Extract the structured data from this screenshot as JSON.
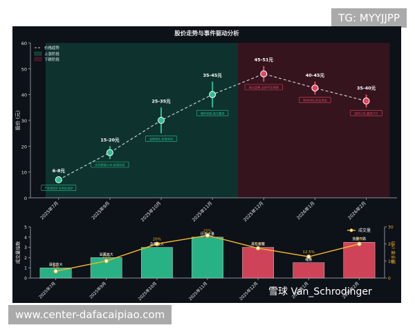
{
  "watermarks": {
    "top": "TG: MYYJJPP",
    "bottom": "www.center-dafacaipiao.com",
    "xueqiu": "雪球 Van_Schrodinger"
  },
  "colors": {
    "bg": "#0d1118",
    "up": "#2bbf8e",
    "down": "#e0485f",
    "volume_line": "#f0b429",
    "uptrend_bg": "#0f3a34",
    "downtrend_bg": "#3d1520",
    "text": "#e8e8e8"
  },
  "chart_data": [
    {
      "type": "line",
      "title": "股价走势与事件驱动分析",
      "ylabel": "股价 (元)",
      "ylim": [
        0,
        60
      ],
      "yticks": [
        0,
        10,
        20,
        30,
        40,
        50,
        60
      ],
      "categories": [
        "2025年7月",
        "2025年9月",
        "2025年10月",
        "2025年11月",
        "2025年12月",
        "2026年1月",
        "2026年2月"
      ],
      "series": [
        {
          "name": "价格趋势",
          "values": [
            7,
            17.5,
            30,
            40,
            48,
            42.5,
            37.5
          ]
        }
      ],
      "ranges": [
        [
          6,
          8
        ],
        [
          15,
          20
        ],
        [
          25,
          35
        ],
        [
          35,
          45
        ],
        [
          45,
          51
        ],
        [
          40,
          45
        ],
        [
          35,
          40
        ]
      ],
      "range_labels": [
        "6-8元",
        "15-20元",
        "25-35元",
        "35-45元",
        "45-51元",
        "40-45元",
        "35-40元"
      ],
      "event_labels": [
        "产能规划扩充利好出炉",
        "实验数据公布,新高阶段",
        "业绩增长,季度利好",
        "强势突破,高位震荡",
        "高位盘整,业绩不及预期",
        "获利回吐,资金流出",
        "减持公告,震荡下行"
      ],
      "legend": [
        "价格趋势",
        "上涨阶段",
        "下跌阶段"
      ],
      "legend_position": "top-left",
      "phases": [
        {
          "name": "上涨阶段",
          "from": 0,
          "to": 4
        },
        {
          "name": "下跌阶段",
          "from": 4,
          "to": 6
        }
      ]
    },
    {
      "type": "bar",
      "categories": [
        "2025年7月",
        "2025年9月",
        "2025年10月",
        "2025年11月",
        "2025年12月",
        "2026年1月",
        "2026年2月"
      ],
      "ylabel": "成交量指数",
      "ylim": [
        0,
        5
      ],
      "yticks": [
        0,
        1,
        2,
        3,
        4,
        5
      ],
      "bar_values": [
        1,
        2,
        3,
        4,
        3,
        1.5,
        3.5
      ],
      "bar_labels": [
        "温和放大",
        "显著放大",
        "急剧放大",
        "历史天量",
        "高位放量",
        "缩量",
        "放量下跌"
      ],
      "y2label": "换手率 (%)",
      "y2lim": [
        0,
        30
      ],
      "y2ticks": [
        0,
        10,
        20,
        30
      ],
      "line_name": "成交量",
      "line_values": [
        4,
        10,
        20,
        25,
        17.5,
        12.5,
        20
      ],
      "line_labels": [
        "4%",
        "10%",
        "20%",
        "25%",
        "17.5%",
        "12.5%",
        "20%"
      ],
      "legend_position": "top-right"
    }
  ]
}
